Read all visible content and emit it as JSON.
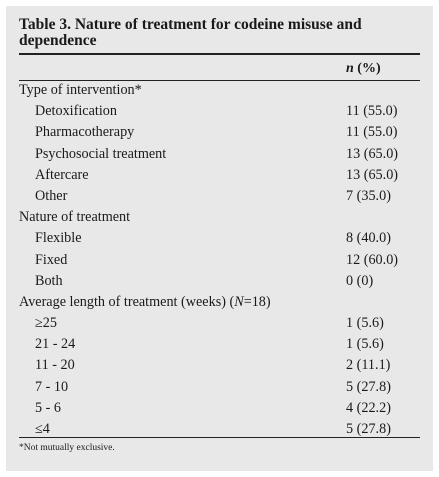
{
  "table": {
    "title": "Table 3. Nature of treatment for codeine misuse and dependence",
    "column_header_italic": "n",
    "column_header_rest": " (%)",
    "rows": [
      {
        "label": "Type of intervention*",
        "value": "",
        "indent": false
      },
      {
        "label": "Detoxification",
        "value": "11 (55.0)",
        "indent": true
      },
      {
        "label": "Pharmacotherapy",
        "value": "11 (55.0)",
        "indent": true
      },
      {
        "label": "Psychosocial treatment",
        "value": "13 (65.0)",
        "indent": true
      },
      {
        "label": "Aftercare",
        "value": "13 (65.0)",
        "indent": true
      },
      {
        "label": "Other",
        "value": "7 (35.0)",
        "indent": true
      },
      {
        "label": "Nature of treatment",
        "value": "",
        "indent": false
      },
      {
        "label": "Flexible",
        "value": "8 (40.0)",
        "indent": true
      },
      {
        "label": "Fixed",
        "value": "12 (60.0)",
        "indent": true
      },
      {
        "label": "Both",
        "value": "0 (0)",
        "indent": true
      },
      {
        "label": "Average length of treatment (weeks) (N=18)",
        "value": "",
        "indent": false
      },
      {
        "label": "≥25",
        "value": "1 (5.6)",
        "indent": true
      },
      {
        "label": "21 - 24",
        "value": "1 (5.6)",
        "indent": true
      },
      {
        "label": "11 - 20",
        "value": "2 (11.1)",
        "indent": true
      },
      {
        "label": "7 - 10",
        "value": "5 (27.8)",
        "indent": true
      },
      {
        "label": "5 - 6",
        "value": "4 (22.2)",
        "indent": true
      },
      {
        "label": "≤4",
        "value": "5 (27.8)",
        "indent": true
      }
    ],
    "footnote": "*Not mutually exclusive."
  }
}
